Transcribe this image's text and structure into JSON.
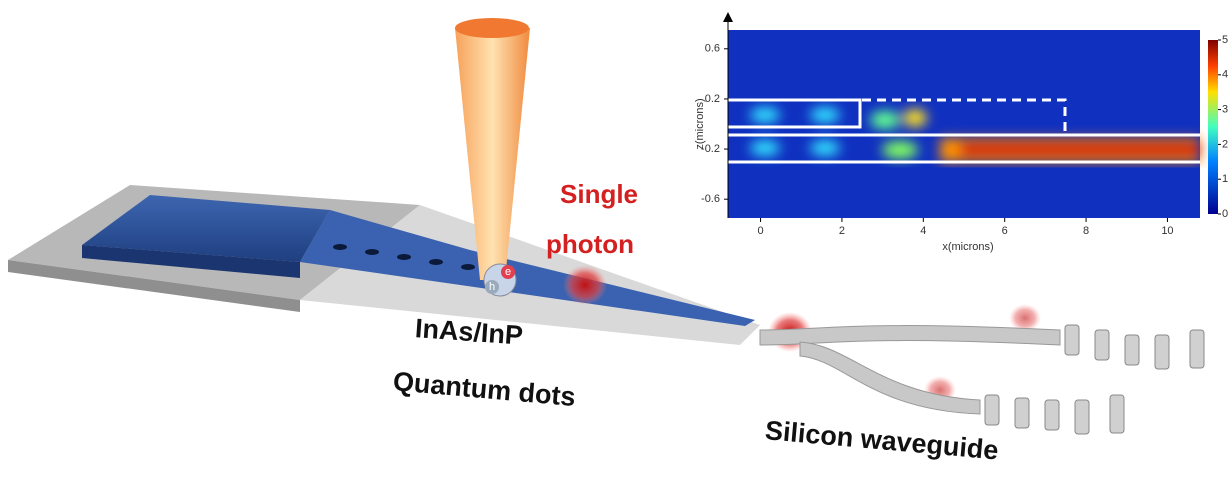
{
  "labels": {
    "single": "Single",
    "photon": "photon",
    "material": "InAs/InP",
    "dots": "Quantum dots",
    "waveguide": "Silicon waveguide",
    "electron": "e",
    "hole": "h"
  },
  "inset": {
    "x_label": "x(microns)",
    "y_label": "z(microns)",
    "xlim": [
      -0.8,
      10.8
    ],
    "ylim": [
      -0.75,
      0.75
    ],
    "xticks": [
      0,
      2,
      4,
      6,
      8,
      10
    ],
    "yticks": [
      0.6,
      0.2,
      -0.2,
      -0.6
    ],
    "colorbar_lim": [
      0,
      5
    ],
    "colorbar_ticks": [
      5,
      4,
      3,
      2,
      1,
      0
    ]
  }
}
